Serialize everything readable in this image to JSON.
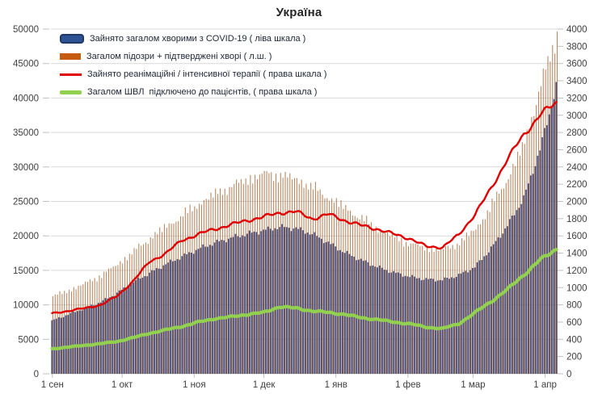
{
  "page": {
    "title": "Україна"
  },
  "legend": {
    "position": "top-left-inside",
    "items": [
      {
        "label": "Зайнято загалом хворими з COVID-19 ( ліва шкала )",
        "swatch": "bar-capsule",
        "color": "#2E5394",
        "border_color": "#1F3864"
      },
      {
        "label": "Загалом підозри + підтверджені хворі ( л.ш. )",
        "swatch": "bar",
        "color": "#C55A11"
      },
      {
        "label": "Зайнято реанімаційні / інтенсивної терапії ( права шкала )",
        "swatch": "line",
        "color": "#E00000"
      },
      {
        "label": "Загалом ШВЛ  підключено до пацієнтів, ( права шкала )",
        "swatch": "line-thick",
        "color": "#92D050"
      }
    ]
  },
  "colors": {
    "background": "#FFFFFF",
    "gridline": "#D9D9D9",
    "tick": "#BFBFBF",
    "axis_text": "#404040",
    "bar_blue": "#41518C",
    "bar_orange": "#9E5B28",
    "line_red": "#E00000",
    "line_green": "#92D050"
  },
  "chart_data": {
    "type": "combo: daily bars (left scale) + lines (right scale)",
    "title": "Україна",
    "xlabel": "",
    "ylabel_left": "",
    "ylabel_right": "",
    "grid": "horizontal only",
    "legend_position": "top-left inside plot",
    "x_unit": "days after first x tick (1 сен), data spans 1 сен … ~6 апр",
    "x_days": [
      0,
      7,
      14,
      21,
      28,
      35,
      42,
      49,
      56,
      63,
      70,
      77,
      84,
      91,
      98,
      105,
      112,
      119,
      126,
      133,
      140,
      147,
      154,
      161,
      168,
      175,
      182,
      189,
      196,
      203,
      210,
      217
    ],
    "x_ticks": [
      {
        "day": 0,
        "label": "1 сен"
      },
      {
        "day": 30,
        "label": "1 окт"
      },
      {
        "day": 61,
        "label": "1 ноя"
      },
      {
        "day": 91,
        "label": "1 дек"
      },
      {
        "day": 122,
        "label": "1 янв"
      },
      {
        "day": 153,
        "label": "1 фев"
      },
      {
        "day": 181,
        "label": "1 мар"
      },
      {
        "day": 212,
        "label": "1 апр"
      }
    ],
    "left_axis": {
      "min": 0,
      "max": 50000,
      "step": 5000,
      "ticks": [
        0,
        5000,
        10000,
        15000,
        20000,
        25000,
        30000,
        35000,
        40000,
        45000,
        50000
      ]
    },
    "right_axis": {
      "min": 0,
      "max": 4000,
      "step": 200,
      "ticks": [
        0,
        200,
        400,
        600,
        800,
        1000,
        1200,
        1400,
        1600,
        1800,
        2000,
        2200,
        2400,
        2600,
        2800,
        3000,
        3200,
        3400,
        3600,
        3800,
        4000
      ]
    },
    "series": [
      {
        "name": "Зайнято загалом хворими з COVID-19 ( ліва шкала )",
        "type": "bar",
        "axis": "left",
        "color": "#41518C",
        "values": [
          7700,
          8600,
          9500,
          10400,
          11700,
          13300,
          14600,
          15900,
          17000,
          18100,
          19000,
          19700,
          20300,
          20800,
          21300,
          21100,
          20300,
          19000,
          17600,
          16500,
          15500,
          14700,
          14100,
          13700,
          13600,
          14300,
          15500,
          18200,
          21500,
          25500,
          32500,
          41700
        ]
      },
      {
        "name": "Загалом підозри + підтверджені хворі ( л.ш. )",
        "type": "bar",
        "axis": "left",
        "color": "#9E5B28",
        "values": [
          11200,
          12100,
          13100,
          14300,
          15900,
          17800,
          19700,
          21400,
          23000,
          24700,
          26100,
          27200,
          28200,
          29000,
          28800,
          28200,
          27000,
          25500,
          24000,
          22500,
          21000,
          19800,
          18800,
          18200,
          18000,
          19000,
          21000,
          24500,
          28500,
          33500,
          42000,
          49000
        ]
      },
      {
        "name": "Зайнято реанімаційні / інтенсивної терапії ( права шкала )",
        "type": "line",
        "axis": "right",
        "color": "#E00000",
        "values": [
          700,
          730,
          760,
          800,
          900,
          1080,
          1300,
          1400,
          1550,
          1620,
          1680,
          1730,
          1780,
          1820,
          1870,
          1880,
          1800,
          1850,
          1780,
          1720,
          1680,
          1620,
          1570,
          1475,
          1470,
          1610,
          1855,
          2150,
          2500,
          2770,
          3010,
          3140
        ]
      },
      {
        "name": "Загалом ШВЛ  підключено до пацієнтів, ( права шкала )",
        "type": "line",
        "axis": "right",
        "color": "#92D050",
        "values": [
          290,
          310,
          330,
          350,
          375,
          420,
          470,
          510,
          550,
          600,
          640,
          660,
          690,
          710,
          780,
          760,
          730,
          710,
          690,
          650,
          630,
          600,
          580,
          540,
          525,
          580,
          710,
          840,
          980,
          1150,
          1320,
          1450
        ]
      }
    ]
  }
}
